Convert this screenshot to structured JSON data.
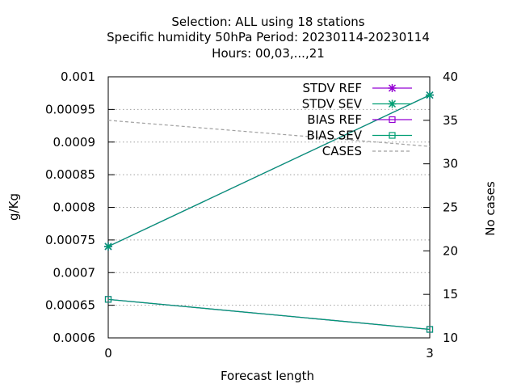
{
  "chart_data": {
    "type": "line",
    "title_lines": [
      "Selection: ALL using    18 stations",
      "Specific humidity 50hPa   Period: 20230114-20230114",
      "Hours:  00,03,...,21"
    ],
    "xlabel": "Forecast length",
    "ylabel": "g/Kg",
    "y2label": "No cases",
    "x": [
      0,
      3
    ],
    "xlim": [
      0,
      3
    ],
    "x_ticks": [
      "0",
      "3"
    ],
    "ylim": [
      0.0006,
      0.001
    ],
    "y_ticks": [
      "0.0006",
      "0.00065",
      "0.0007",
      "0.00075",
      "0.0008",
      "0.00085",
      "0.0009",
      "0.00095",
      "0.001"
    ],
    "y2lim": [
      10,
      40
    ],
    "y2_ticks": [
      "10",
      "15",
      "20",
      "25",
      "30",
      "35",
      "40"
    ],
    "grid": true,
    "legend_position": "top-right",
    "series": [
      {
        "name": "STDV REF",
        "axis": "y",
        "values": [
          0.00074,
          0.000972
        ],
        "color": "#9400d3",
        "marker": "star",
        "dashed": false
      },
      {
        "name": "STDV SEV",
        "axis": "y",
        "values": [
          0.00074,
          0.000972
        ],
        "color": "#009e73",
        "marker": "star",
        "dashed": false
      },
      {
        "name": "BIAS REF",
        "axis": "y",
        "values": [
          0.000659,
          0.000613
        ],
        "color": "#9400d3",
        "marker": "square",
        "dashed": false
      },
      {
        "name": "BIAS SEV",
        "axis": "y",
        "values": [
          0.000659,
          0.000613
        ],
        "color": "#009e73",
        "marker": "square",
        "dashed": false
      },
      {
        "name": "CASES",
        "axis": "y2",
        "values": [
          35,
          32
        ],
        "color": "#a0a0a0",
        "marker": "none",
        "dashed": true
      }
    ]
  }
}
